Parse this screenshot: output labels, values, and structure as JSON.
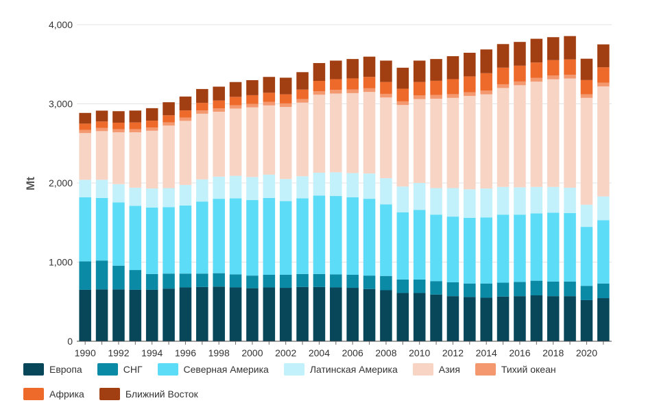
{
  "chart_data": {
    "type": "bar",
    "stacked": true,
    "title": "",
    "xlabel": "",
    "ylabel": "Mt",
    "ylim": [
      0,
      4000
    ],
    "yticks": [
      0,
      1000,
      2000,
      3000,
      4000
    ],
    "ytick_labels": [
      "0",
      "1,000",
      "2,000",
      "3,000",
      "4,000"
    ],
    "categories": [
      1990,
      1991,
      1992,
      1993,
      1994,
      1995,
      1996,
      1997,
      1998,
      1999,
      2000,
      2001,
      2002,
      2003,
      2004,
      2005,
      2006,
      2007,
      2008,
      2009,
      2010,
      2011,
      2012,
      2013,
      2014,
      2015,
      2016,
      2017,
      2018,
      2019,
      2020,
      2021
    ],
    "xtick_labels": [
      "1990",
      "1992",
      "1994",
      "1996",
      "1998",
      "2000",
      "2002",
      "2004",
      "2006",
      "2008",
      "2010",
      "2012",
      "2014",
      "2016",
      "2018",
      "2020"
    ],
    "legend_position": "bottom",
    "series": [
      {
        "name": "Европа",
        "color": "#08465a",
        "values": [
          650,
          655,
          655,
          650,
          650,
          665,
          680,
          685,
          690,
          680,
          670,
          680,
          675,
          685,
          685,
          680,
          675,
          660,
          645,
          610,
          610,
          590,
          570,
          560,
          550,
          565,
          570,
          580,
          570,
          570,
          520,
          545
        ]
      },
      {
        "name": "СНГ",
        "color": "#0b8aa6",
        "values": [
          360,
          365,
          300,
          250,
          200,
          190,
          175,
          170,
          170,
          165,
          160,
          160,
          165,
          165,
          165,
          165,
          165,
          170,
          180,
          170,
          170,
          170,
          175,
          170,
          180,
          175,
          180,
          185,
          185,
          185,
          180,
          185
        ]
      },
      {
        "name": "Северная Америка",
        "color": "#5ddcf8",
        "values": [
          810,
          790,
          800,
          810,
          840,
          840,
          860,
          910,
          940,
          960,
          955,
          970,
          930,
          955,
          990,
          990,
          980,
          970,
          905,
          850,
          880,
          840,
          830,
          830,
          835,
          860,
          850,
          850,
          870,
          865,
          745,
          800
        ]
      },
      {
        "name": "Латинская Америка",
        "color": "#c2f1fc",
        "values": [
          220,
          230,
          230,
          230,
          240,
          240,
          260,
          280,
          280,
          285,
          290,
          295,
          280,
          280,
          290,
          300,
          305,
          320,
          330,
          325,
          340,
          335,
          360,
          360,
          365,
          350,
          345,
          335,
          325,
          320,
          280,
          300
        ]
      },
      {
        "name": "Азия",
        "color": "#f8d4c5",
        "values": [
          590,
          615,
          655,
          700,
          730,
          790,
          810,
          830,
          820,
          850,
          880,
          875,
          910,
          930,
          985,
          995,
          1010,
          1030,
          1020,
          1030,
          1060,
          1130,
          1140,
          1180,
          1190,
          1250,
          1290,
          1330,
          1360,
          1380,
          1350,
          1390
        ]
      },
      {
        "name": "Тихий океан",
        "color": "#f3986f",
        "values": [
          40,
          40,
          40,
          40,
          40,
          40,
          40,
          42,
          42,
          43,
          44,
          45,
          45,
          45,
          45,
          46,
          46,
          46,
          46,
          46,
          46,
          46,
          47,
          47,
          47,
          47,
          47,
          47,
          47,
          46,
          45,
          46
        ]
      },
      {
        "name": "Африка",
        "color": "#ee6a2a",
        "values": [
          80,
          82,
          82,
          85,
          87,
          90,
          92,
          95,
          100,
          105,
          110,
          115,
          115,
          120,
          130,
          135,
          140,
          145,
          150,
          160,
          170,
          180,
          190,
          200,
          220,
          210,
          200,
          195,
          195,
          195,
          180,
          195
        ]
      },
      {
        "name": "Ближний Восток",
        "color": "#a13f12",
        "values": [
          135,
          137,
          145,
          150,
          158,
          165,
          175,
          175,
          175,
          187,
          190,
          200,
          210,
          220,
          225,
          235,
          245,
          255,
          270,
          265,
          270,
          275,
          290,
          298,
          300,
          298,
          300,
          300,
          290,
          295,
          270,
          290
        ]
      }
    ]
  }
}
